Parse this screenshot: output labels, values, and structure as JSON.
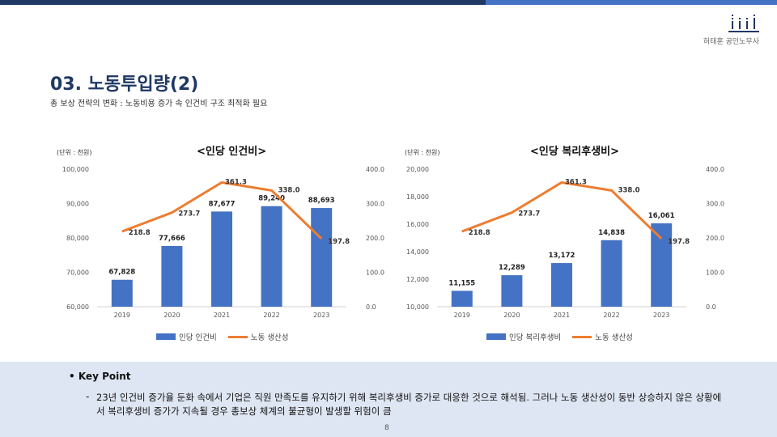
{
  "header": {
    "firm": "허태훈 공인노무사",
    "title": "03. 노동투입량(2)",
    "subtitle": "총 보상 전략의 변화 : 노동비용 증가 속 인건비 구조 최적화 필요",
    "colors": {
      "dark": "#1f3864",
      "accent": "#4472c4"
    }
  },
  "chart_data": [
    {
      "type": "bar",
      "title": "<인당 인건비>",
      "unit_label": "(단위 : 천원)",
      "categories": [
        "2019",
        "2020",
        "2021",
        "2022",
        "2023"
      ],
      "series": [
        {
          "name": "인당 인건비",
          "type": "bar",
          "axis": "left",
          "color": "#4472c4",
          "values": [
            67828,
            77666,
            87677,
            89240,
            88693
          ],
          "labels": [
            "67,828",
            "77,666",
            "87,677",
            "89,240",
            "88,693"
          ]
        },
        {
          "name": "노동 생산성",
          "type": "line",
          "axis": "right",
          "color": "#ed7d31",
          "values": [
            218.8,
            273.7,
            361.3,
            338.0,
            197.8
          ],
          "labels": [
            "218.8",
            "273.7",
            "361.3",
            "338.0",
            "197.8"
          ]
        }
      ],
      "ylim_left": [
        60000,
        100000
      ],
      "yticks_left": [
        "60,000",
        "70,000",
        "80,000",
        "90,000",
        "100,000"
      ],
      "ylim_right": [
        0,
        400
      ],
      "yticks_right": [
        "0.0",
        "100.0",
        "200.0",
        "300.0",
        "400.0"
      ],
      "legend_position": "bottom"
    },
    {
      "type": "bar",
      "title": "<인당 복리후생비>",
      "unit_label": "(단위 : 천원)",
      "categories": [
        "2019",
        "2020",
        "2021",
        "2022",
        "2023"
      ],
      "series": [
        {
          "name": "인당 복리후생비",
          "type": "bar",
          "axis": "left",
          "color": "#4472c4",
          "values": [
            11155,
            12289,
            13172,
            14838,
            16061
          ],
          "labels": [
            "11,155",
            "12,289",
            "13,172",
            "14,838",
            "16,061"
          ]
        },
        {
          "name": "노동 생산성",
          "type": "line",
          "axis": "right",
          "color": "#ed7d31",
          "values": [
            218.8,
            273.7,
            361.3,
            338.0,
            197.8
          ],
          "labels": [
            "218.8",
            "273.7",
            "361.3",
            "338.0",
            "197.8"
          ]
        }
      ],
      "ylim_left": [
        10000,
        20000
      ],
      "yticks_left": [
        "10,000",
        "12,000",
        "14,000",
        "16,000",
        "18,000",
        "20,000"
      ],
      "ylim_right": [
        0,
        400
      ],
      "yticks_right": [
        "0.0",
        "100.0",
        "200.0",
        "300.0",
        "400.0"
      ],
      "legend_position": "bottom"
    }
  ],
  "keypoint": {
    "title": "• Key Point",
    "bullet": "-",
    "text": "23년 인건비 증가율 둔화 속에서 기업은 직원 만족도를 유지하기 위해 복리후생비 증가로 대응한 것으로 해석됨. 그러나 노동 생산성이 동반 상승하지 않은 상황에서 복리후생비 증가가 지속될 경우 총보상 체계의 불균형이 발생할 위험이 큼"
  },
  "footer": {
    "page": "8"
  }
}
